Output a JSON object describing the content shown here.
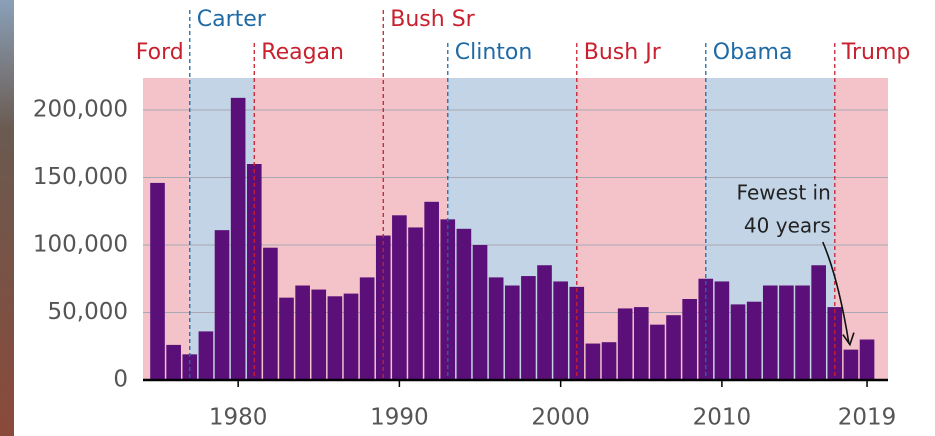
{
  "chart_data": {
    "type": "bar",
    "x": [
      1975,
      1976,
      1977,
      1978,
      1979,
      1980,
      1981,
      1982,
      1983,
      1984,
      1985,
      1986,
      1987,
      1988,
      1989,
      1990,
      1991,
      1992,
      1993,
      1994,
      1995,
      1996,
      1997,
      1998,
      1999,
      2000,
      2001,
      2002,
      2003,
      2004,
      2005,
      2006,
      2007,
      2008,
      2009,
      2010,
      2011,
      2012,
      2013,
      2014,
      2015,
      2016,
      2017,
      2018,
      2019
    ],
    "values": [
      146000,
      26000,
      19000,
      36000,
      111000,
      209000,
      160000,
      98000,
      61000,
      70000,
      67000,
      62000,
      64000,
      76000,
      107000,
      122000,
      113000,
      132000,
      119000,
      112000,
      100000,
      76000,
      70000,
      77000,
      85000,
      73000,
      69000,
      27000,
      28000,
      53000,
      54000,
      41000,
      48000,
      60000,
      75000,
      73000,
      56000,
      58000,
      70000,
      70000,
      70000,
      85000,
      54000,
      22500,
      30000
    ],
    "color": "#5a1078",
    "xlim": [
      1974.1,
      2020.3
    ],
    "xticks": [
      1980,
      1990,
      2000,
      2010,
      2019
    ],
    "ylim": [
      0,
      210000
    ],
    "yticks": [
      0,
      {
        "value": 50000,
        "label": "50,000"
      },
      {
        "value": 100000,
        "label": "100,000"
      },
      {
        "value": 150000,
        "label": "150,000"
      },
      {
        "value": 200000,
        "label": "200,000"
      }
    ],
    "grid": true,
    "presidents": [
      {
        "name": "Ford",
        "start": 1974,
        "color": "#c8202f"
      },
      {
        "name": "Carter",
        "start": 1977,
        "color": "#1f6aa5"
      },
      {
        "name": "Reagan",
        "start": 1981,
        "color": "#c8202f"
      },
      {
        "name": "Bush Sr",
        "start": 1989,
        "color": "#c8202f"
      },
      {
        "name": "Clinton",
        "start": 1993,
        "color": "#1f6aa5"
      },
      {
        "name": "Bush Jr",
        "start": 2001,
        "color": "#c8202f"
      },
      {
        "name": "Obama",
        "start": 2009,
        "color": "#1f6aa5"
      },
      {
        "name": "Trump",
        "start": 2017,
        "color": "#c8202f"
      }
    ],
    "annotation": [
      "Fewest in",
      "40 years"
    ]
  }
}
